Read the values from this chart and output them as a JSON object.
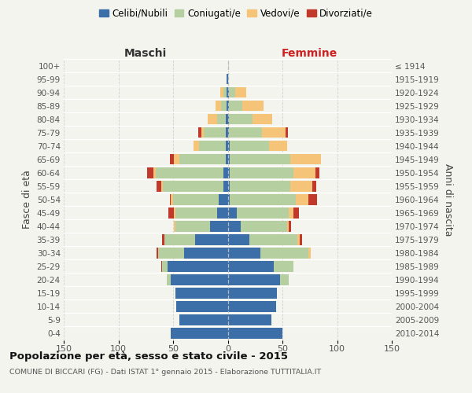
{
  "age_groups": [
    "0-4",
    "5-9",
    "10-14",
    "15-19",
    "20-24",
    "25-29",
    "30-34",
    "35-39",
    "40-44",
    "45-49",
    "50-54",
    "55-59",
    "60-64",
    "65-69",
    "70-74",
    "75-79",
    "80-84",
    "85-89",
    "90-94",
    "95-99",
    "100+"
  ],
  "birth_years": [
    "2010-2014",
    "2005-2009",
    "2000-2004",
    "1995-1999",
    "1990-1994",
    "1985-1989",
    "1980-1984",
    "1975-1979",
    "1970-1974",
    "1965-1969",
    "1960-1964",
    "1955-1959",
    "1950-1954",
    "1945-1949",
    "1940-1944",
    "1935-1939",
    "1930-1934",
    "1925-1929",
    "1920-1924",
    "1915-1919",
    "≤ 1914"
  ],
  "colors": {
    "celibi": "#3c6ea8",
    "coniugati": "#b5cfa0",
    "vedovi": "#f5c478",
    "divorziati": "#c0392b"
  },
  "male": {
    "celibi": [
      52,
      44,
      47,
      48,
      52,
      55,
      40,
      30,
      16,
      10,
      8,
      4,
      4,
      2,
      2,
      2,
      2,
      1,
      1,
      1,
      0
    ],
    "coniugati": [
      0,
      0,
      0,
      0,
      4,
      5,
      24,
      28,
      32,
      38,
      42,
      55,
      62,
      42,
      24,
      20,
      8,
      5,
      3,
      0,
      0
    ],
    "vedovi": [
      0,
      0,
      0,
      0,
      0,
      0,
      0,
      0,
      1,
      1,
      2,
      2,
      2,
      5,
      5,
      2,
      8,
      5,
      3,
      0,
      0
    ],
    "divorziati": [
      0,
      0,
      0,
      0,
      0,
      1,
      1,
      2,
      0,
      5,
      1,
      4,
      6,
      4,
      0,
      3,
      0,
      0,
      0,
      0,
      0
    ]
  },
  "female": {
    "nubili": [
      50,
      40,
      44,
      45,
      48,
      42,
      30,
      20,
      12,
      8,
      2,
      2,
      2,
      2,
      2,
      1,
      1,
      1,
      1,
      0,
      0
    ],
    "coniugate": [
      0,
      0,
      0,
      0,
      8,
      18,
      44,
      44,
      42,
      48,
      60,
      55,
      58,
      55,
      36,
      30,
      22,
      12,
      6,
      0,
      0
    ],
    "vedove": [
      0,
      0,
      0,
      0,
      0,
      0,
      2,
      2,
      2,
      4,
      12,
      20,
      20,
      28,
      16,
      22,
      18,
      20,
      10,
      0,
      0
    ],
    "divorziate": [
      0,
      0,
      0,
      0,
      0,
      0,
      0,
      2,
      2,
      5,
      8,
      4,
      4,
      0,
      0,
      2,
      0,
      0,
      0,
      0,
      0
    ]
  },
  "xlim": 150,
  "title": "Popolazione per età, sesso e stato civile - 2015",
  "subtitle": "COMUNE DI BICCARI (FG) - Dati ISTAT 1° gennaio 2015 - Elaborazione TUTTITALIA.IT",
  "ylabel_left": "Fasce di età",
  "ylabel_right": "Anni di nascita",
  "xlabel_maschi": "Maschi",
  "xlabel_femmine": "Femmine",
  "maschi_color": "#333333",
  "femmine_color": "#cc2222",
  "background_color": "#f4f4ee",
  "grid_color": "#cccccc",
  "legend_labels": [
    "Celibi/Nubili",
    "Coniugati/e",
    "Vedovi/e",
    "Divorziati/e"
  ]
}
